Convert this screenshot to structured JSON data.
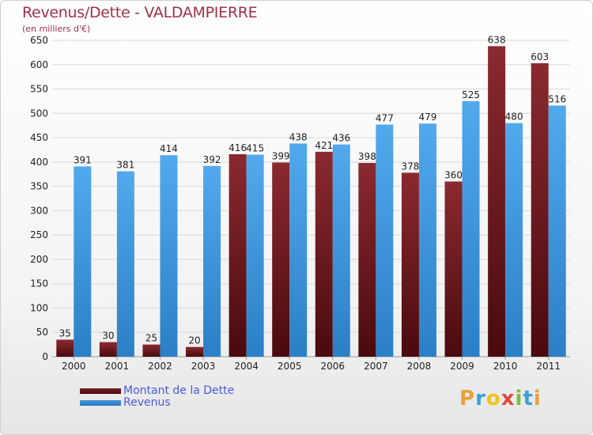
{
  "header": {
    "title": "Revenus/Dette - VALDAMPIERRE",
    "subtitle": "(en milliers d'€)"
  },
  "colors": {
    "dette": "#7a1f25",
    "revenus": "#3f97dd",
    "grid": "#d8d8d8",
    "axis_text": "#222222"
  },
  "chart_data": {
    "type": "bar",
    "categories": [
      "2000",
      "2001",
      "2002",
      "2003",
      "2004",
      "2005",
      "2006",
      "2007",
      "2008",
      "2009",
      "2010",
      "2011"
    ],
    "series": [
      {
        "name": "Montant de la Dette",
        "values": [
          35,
          30,
          25,
          20,
          416,
          399,
          421,
          398,
          378,
          360,
          638,
          603
        ]
      },
      {
        "name": "Revenus",
        "values": [
          391,
          381,
          414,
          392,
          415,
          438,
          436,
          477,
          479,
          525,
          480,
          516
        ]
      }
    ],
    "ylim": [
      0,
      650
    ],
    "yticks": [
      0,
      50,
      100,
      150,
      200,
      250,
      300,
      350,
      400,
      450,
      500,
      550,
      600,
      650
    ],
    "grid": true,
    "legend_position": "bottom-left"
  },
  "legend": {
    "items": [
      {
        "label": "Montant de la Dette",
        "color": "#7a1f25"
      },
      {
        "label": "Revenus",
        "color": "#3f97dd"
      }
    ]
  },
  "logo": {
    "letters": [
      "P",
      "r",
      "o",
      "x",
      "i",
      "t",
      "i"
    ],
    "colors": [
      "#e8a23a",
      "#3aa0d8",
      "#f0c419",
      "#e0473a",
      "#7cbf3a",
      "#3aa0d8",
      "#e8a23a"
    ]
  }
}
